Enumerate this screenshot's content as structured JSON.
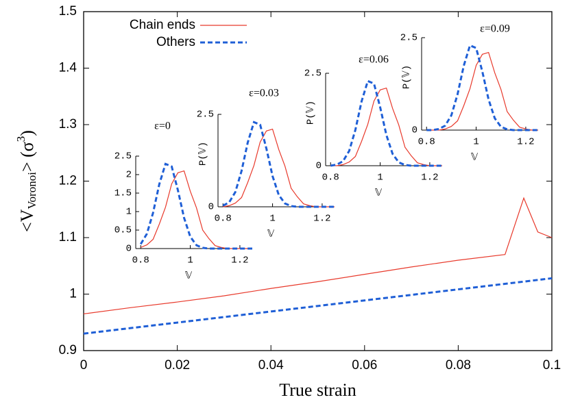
{
  "chart_data": [
    {
      "type": "line",
      "xlabel": "True strain",
      "ylabel": {
        "main": "<V",
        "sub": "Voronoi",
        "mid": "> (σ",
        "sup": "3",
        "end": ")"
      },
      "xlim": [
        0,
        0.1
      ],
      "ylim": [
        0.9,
        1.5
      ],
      "xticks": [
        0,
        0.02,
        0.04,
        0.06,
        0.08,
        0.1
      ],
      "yticks": [
        0.9,
        1,
        1.1,
        1.2,
        1.3,
        1.4,
        1.5
      ],
      "legend": "top-left",
      "x": [
        0,
        0.01,
        0.02,
        0.03,
        0.04,
        0.05,
        0.06,
        0.07,
        0.08,
        0.09,
        0.094,
        0.097,
        0.1
      ],
      "series": [
        {
          "name": "Chain ends",
          "color": "#e8392b",
          "style": "solid",
          "values": [
            0.965,
            0.976,
            0.986,
            0.997,
            1.01,
            1.022,
            1.035,
            1.048,
            1.06,
            1.07,
            1.17,
            1.11,
            1.1
          ]
        },
        {
          "name": "Others",
          "color": "#1f5fd6",
          "style": "dashed",
          "values": [
            0.93,
            0.9398,
            0.9496,
            0.9594,
            0.9692,
            0.979,
            0.9888,
            0.9986,
            1.0084,
            1.0182,
            1.0221,
            1.0251,
            1.028
          ]
        }
      ]
    },
    {
      "type": "line",
      "title": "ε=0",
      "xlabel": "𝕍",
      "xlim": [
        0.78,
        1.25
      ],
      "ylim": [
        0,
        2.5
      ],
      "xticks": [
        0.8,
        1,
        1.2
      ],
      "yticks": [
        0,
        0.5,
        1,
        1.5,
        2,
        2.5
      ],
      "x": [
        0.8,
        0.825,
        0.85,
        0.875,
        0.9,
        0.925,
        0.95,
        0.975,
        1,
        1.025,
        1.05,
        1.075,
        1.1,
        1.125,
        1.15,
        1.175,
        1.2,
        1.225,
        1.25
      ],
      "series": [
        {
          "color": "#e8392b",
          "style": "solid",
          "values": [
            0.03,
            0.1,
            0.25,
            0.66,
            1.12,
            1.75,
            2.05,
            2.1,
            1.55,
            1.1,
            0.5,
            0.27,
            0.08,
            0.03,
            0,
            0,
            0,
            0,
            0
          ]
        },
        {
          "color": "#1f5fd6",
          "style": "dashed",
          "values": [
            0.12,
            0.4,
            0.97,
            1.74,
            2.29,
            2.22,
            1.58,
            0.83,
            0.32,
            0.09,
            0.02,
            0,
            0,
            0,
            0,
            0,
            0,
            0,
            0
          ]
        }
      ]
    },
    {
      "type": "line",
      "title": "ε=0.03",
      "xlabel": "𝕍",
      "ylabel": "P(𝕍)",
      "xlim": [
        0.78,
        1.25
      ],
      "ylim": [
        0,
        2.5
      ],
      "xticks": [
        0.8,
        1,
        1.2
      ],
      "yticks": [
        0,
        2.5
      ],
      "x": [
        0.8,
        0.825,
        0.85,
        0.875,
        0.9,
        0.925,
        0.95,
        0.975,
        1,
        1.025,
        1.05,
        1.075,
        1.1,
        1.125,
        1.15,
        1.175,
        1.2,
        1.225,
        1.25
      ],
      "series": [
        {
          "color": "#e8392b",
          "style": "solid",
          "values": [
            0,
            0.03,
            0.1,
            0.25,
            0.66,
            1.12,
            1.75,
            2.05,
            2.1,
            1.55,
            1.1,
            0.5,
            0.27,
            0.08,
            0.03,
            0,
            0,
            0,
            0
          ]
        },
        {
          "color": "#1f5fd6",
          "style": "dashed",
          "values": [
            0.03,
            0.12,
            0.4,
            0.97,
            1.74,
            2.29,
            2.22,
            1.58,
            0.83,
            0.32,
            0.09,
            0.02,
            0,
            0,
            0,
            0,
            0,
            0,
            0
          ]
        }
      ]
    },
    {
      "type": "line",
      "title": "ε=0.06",
      "xlabel": "𝕍",
      "ylabel": "P(𝕍)",
      "xlim": [
        0.78,
        1.25
      ],
      "ylim": [
        0,
        2.5
      ],
      "xticks": [
        0.8,
        1,
        1.2
      ],
      "yticks": [
        0,
        2.5
      ],
      "x": [
        0.8,
        0.825,
        0.85,
        0.875,
        0.9,
        0.925,
        0.95,
        0.975,
        1,
        1.025,
        1.05,
        1.075,
        1.1,
        1.125,
        1.15,
        1.175,
        1.2,
        1.225,
        1.25
      ],
      "series": [
        {
          "color": "#e8392b",
          "style": "solid",
          "values": [
            0,
            0,
            0.03,
            0.1,
            0.25,
            0.66,
            1.12,
            1.75,
            2.05,
            2.1,
            1.55,
            1.1,
            0.5,
            0.27,
            0.08,
            0.03,
            0,
            0,
            0
          ]
        },
        {
          "color": "#1f5fd6",
          "style": "dashed",
          "values": [
            0,
            0.03,
            0.12,
            0.4,
            0.97,
            1.74,
            2.29,
            2.22,
            1.58,
            0.83,
            0.32,
            0.09,
            0.02,
            0,
            0,
            0,
            0,
            0,
            0
          ]
        }
      ]
    },
    {
      "type": "line",
      "title": "ε=0.09",
      "xlabel": "𝕍",
      "ylabel": "P(𝕍)",
      "xlim": [
        0.78,
        1.25
      ],
      "ylim": [
        0,
        2.5
      ],
      "xticks": [
        0.8,
        1,
        1.2
      ],
      "yticks": [
        0,
        2.5
      ],
      "x": [
        0.8,
        0.825,
        0.85,
        0.875,
        0.9,
        0.925,
        0.95,
        0.975,
        1,
        1.025,
        1.05,
        1.075,
        1.1,
        1.125,
        1.15,
        1.175,
        1.2,
        1.225,
        1.25
      ],
      "series": [
        {
          "color": "#e8392b",
          "style": "solid",
          "values": [
            0,
            0,
            0,
            0.03,
            0.1,
            0.25,
            0.66,
            1.12,
            1.75,
            2.05,
            2.1,
            1.55,
            1.1,
            0.5,
            0.27,
            0.08,
            0.03,
            0,
            0
          ]
        },
        {
          "color": "#1f5fd6",
          "style": "dashed",
          "values": [
            0,
            0,
            0.03,
            0.12,
            0.4,
            0.97,
            1.74,
            2.29,
            2.22,
            1.58,
            0.83,
            0.32,
            0.09,
            0.02,
            0,
            0,
            0,
            0,
            0
          ]
        }
      ]
    }
  ]
}
